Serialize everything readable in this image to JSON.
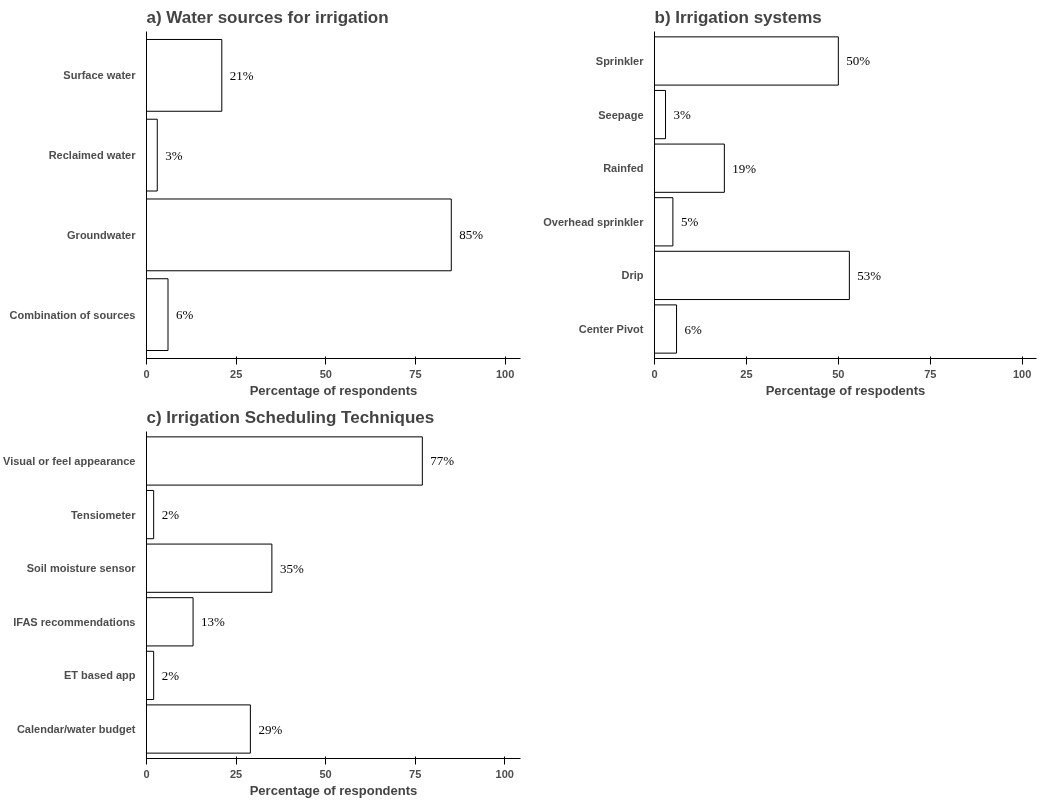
{
  "chart_data": [
    {
      "type": "bar",
      "orientation": "horizontal",
      "title": "a) Water sources for irrigation",
      "xlabel": "Percentage of respondents",
      "categories": [
        "Surface water",
        "Reclaimed water",
        "Groundwater",
        "Combination of sources"
      ],
      "values": [
        21,
        3,
        85,
        6
      ],
      "value_labels": [
        "21%",
        "3%",
        "85%",
        "6%"
      ],
      "color": "#ffffff",
      "xlim": [
        0,
        104.3
      ],
      "xticks": [
        0,
        25,
        50,
        75,
        100
      ],
      "grid": false
    },
    {
      "type": "bar",
      "orientation": "horizontal",
      "title": "b) Irrigation systems",
      "xlabel": "Percentage of respodents",
      "categories": [
        "Sprinkler",
        "Seepage",
        "Rainfed",
        "Overhead sprinkler",
        "Drip",
        "Center Pivot"
      ],
      "values": [
        50,
        3,
        19,
        5,
        53,
        6
      ],
      "value_labels": [
        "50%",
        "3%",
        "19%",
        "5%",
        "53%",
        "6%"
      ],
      "color": "#ffffff",
      "xlim": [
        0,
        103.9
      ],
      "xticks": [
        0,
        25,
        50,
        75,
        100
      ],
      "grid": false
    },
    {
      "type": "bar",
      "orientation": "horizontal",
      "title": "c) Irrigation Scheduling Techniques",
      "xlabel": "Percentage of respondents",
      "categories": [
        "Visual or feel appearance",
        "Tensiometer",
        "Soil moisture sensor",
        "IFAS recommendations",
        "ET based app",
        "Calendar/water budget"
      ],
      "values": [
        77,
        2,
        35,
        13,
        2,
        29
      ],
      "value_labels": [
        "77%",
        "2%",
        "35%",
        "13%",
        "2%",
        "29%"
      ],
      "color": "#ffffff",
      "xlim": [
        0,
        104.4
      ],
      "xticks": [
        0,
        25,
        50,
        75,
        100
      ],
      "grid": false
    }
  ]
}
